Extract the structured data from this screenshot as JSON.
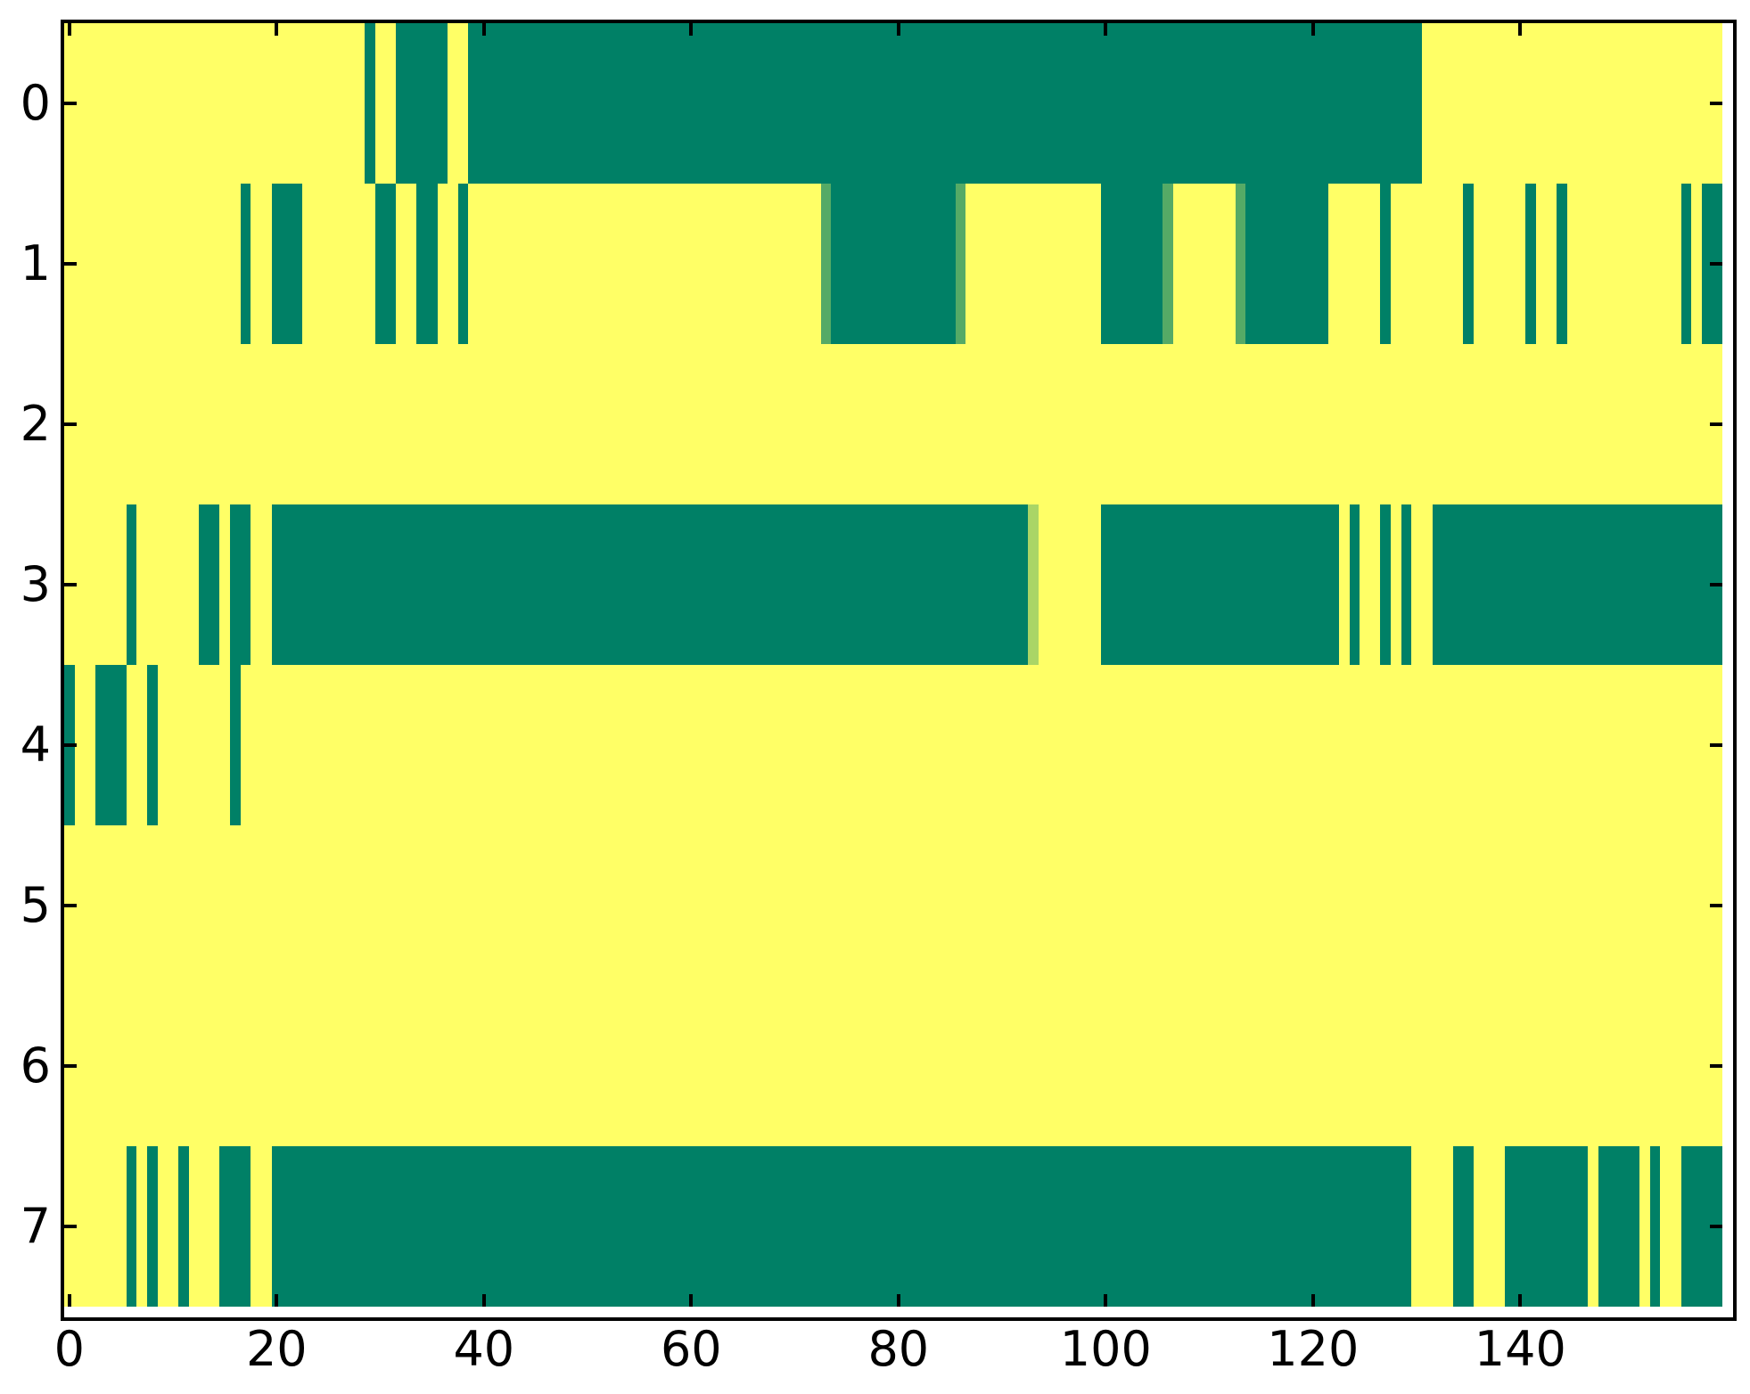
{
  "chart_data": {
    "type": "heatmap",
    "title": "",
    "xlabel": "",
    "ylabel": "",
    "grid": false,
    "legend": "none",
    "colormap": "summer",
    "colors": {
      "background": "#ffff66",
      "spine": "#000000",
      "tick_label": "#000000",
      "value_colors": {
        "1": "#008066",
        "0.67": "#aad566",
        "0.33": "#55aa66",
        "0": "#ffff66"
      }
    },
    "x_axis": {
      "extent": [
        -0.5,
        159.5
      ],
      "n_cols": 160,
      "tick_values": [
        0,
        20,
        40,
        60,
        80,
        100,
        120,
        140
      ],
      "tick_labels": [
        "0",
        "20",
        "40",
        "60",
        "80",
        "100",
        "120",
        "140"
      ]
    },
    "y_axis": {
      "extent": [
        -0.5,
        7.5
      ],
      "n_rows": 8,
      "tick_values": [
        0,
        1,
        2,
        3,
        4,
        5,
        6,
        7
      ],
      "tick_labels": [
        "0",
        "1",
        "2",
        "3",
        "4",
        "5",
        "6",
        "7"
      ]
    },
    "rows": [
      {
        "y": 0,
        "segments": [
          {
            "start": 28.5,
            "end": 29.5,
            "value": 1
          },
          {
            "start": 31.5,
            "end": 36.5,
            "value": 1
          },
          {
            "start": 38.5,
            "end": 130.5,
            "value": 1
          }
        ]
      },
      {
        "y": 1,
        "segments": [
          {
            "start": 16.5,
            "end": 17.5,
            "value": 1
          },
          {
            "start": 19.5,
            "end": 22.5,
            "value": 1
          },
          {
            "start": 29.5,
            "end": 31.5,
            "value": 1
          },
          {
            "start": 33.5,
            "end": 35.5,
            "value": 1
          },
          {
            "start": 37.5,
            "end": 38.5,
            "value": 1
          },
          {
            "start": 72.5,
            "end": 73.5,
            "value": 0.33
          },
          {
            "start": 73.5,
            "end": 85.5,
            "value": 1
          },
          {
            "start": 85.5,
            "end": 86.5,
            "value": 0.33
          },
          {
            "start": 99.5,
            "end": 105.5,
            "value": 1
          },
          {
            "start": 105.5,
            "end": 106.5,
            "value": 0.33
          },
          {
            "start": 112.5,
            "end": 113.5,
            "value": 0.33
          },
          {
            "start": 113.5,
            "end": 121.5,
            "value": 1
          },
          {
            "start": 126.5,
            "end": 127.5,
            "value": 1
          },
          {
            "start": 134.5,
            "end": 135.5,
            "value": 1
          },
          {
            "start": 140.5,
            "end": 141.5,
            "value": 1
          },
          {
            "start": 143.5,
            "end": 144.5,
            "value": 1
          },
          {
            "start": 155.5,
            "end": 156.5,
            "value": 1
          },
          {
            "start": 157.5,
            "end": 159.5,
            "value": 1
          }
        ]
      },
      {
        "y": 2,
        "segments": []
      },
      {
        "y": 3,
        "segments": [
          {
            "start": 5.5,
            "end": 6.5,
            "value": 1
          },
          {
            "start": 12.5,
            "end": 14.5,
            "value": 1
          },
          {
            "start": 15.5,
            "end": 17.5,
            "value": 1
          },
          {
            "start": 19.5,
            "end": 92.5,
            "value": 1
          },
          {
            "start": 92.5,
            "end": 93.5,
            "value": 0.67
          },
          {
            "start": 99.5,
            "end": 122.5,
            "value": 1
          },
          {
            "start": 123.5,
            "end": 124.5,
            "value": 1
          },
          {
            "start": 126.5,
            "end": 127.5,
            "value": 1
          },
          {
            "start": 128.5,
            "end": 129.5,
            "value": 1
          },
          {
            "start": 131.5,
            "end": 159.5,
            "value": 1
          }
        ]
      },
      {
        "y": 4,
        "segments": [
          {
            "start": -0.5,
            "end": 0.5,
            "value": 1
          },
          {
            "start": 2.5,
            "end": 5.5,
            "value": 1
          },
          {
            "start": 7.5,
            "end": 8.5,
            "value": 1
          },
          {
            "start": 15.5,
            "end": 16.5,
            "value": 1
          }
        ]
      },
      {
        "y": 5,
        "segments": []
      },
      {
        "y": 6,
        "segments": []
      },
      {
        "y": 7,
        "segments": [
          {
            "start": 5.5,
            "end": 6.5,
            "value": 1
          },
          {
            "start": 7.5,
            "end": 8.5,
            "value": 1
          },
          {
            "start": 10.5,
            "end": 11.5,
            "value": 1
          },
          {
            "start": 14.5,
            "end": 17.5,
            "value": 1
          },
          {
            "start": 19.5,
            "end": 129.5,
            "value": 1
          },
          {
            "start": 133.5,
            "end": 135.5,
            "value": 1
          },
          {
            "start": 138.5,
            "end": 146.5,
            "value": 1
          },
          {
            "start": 147.5,
            "end": 151.5,
            "value": 1
          },
          {
            "start": 152.5,
            "end": 153.5,
            "value": 1
          },
          {
            "start": 155.5,
            "end": 159.5,
            "value": 1
          }
        ]
      }
    ]
  }
}
